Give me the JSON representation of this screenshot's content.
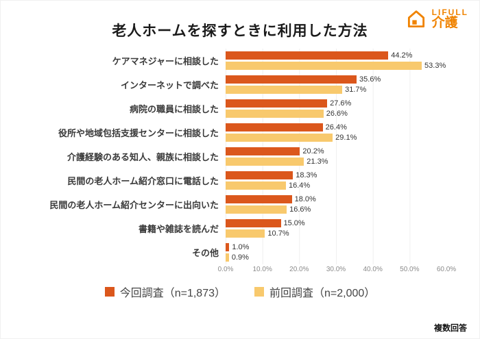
{
  "logo": {
    "brand": "LIFULL",
    "sub": "介護"
  },
  "title": "老人ホームを探すときに利用した方法",
  "footer_note": "複数回答",
  "colors": {
    "current": "#DB571C",
    "previous": "#F8C96D",
    "logo": "#F08300"
  },
  "chart_data": {
    "type": "bar",
    "orientation": "horizontal",
    "title": "老人ホームを探すときに利用した方法",
    "categories": [
      "ケアマネジャーに相談した",
      "インターネットで調べた",
      "病院の職員に相談した",
      "役所や地域包括支援センターに相談した",
      "介護経験のある知人、親族に相談した",
      "民間の老人ホーム紹介窓口に電話した",
      "民間の老人ホーム紹介センターに出向いた",
      "書籍や雑誌を読んだ",
      "その他"
    ],
    "series": [
      {
        "name": "今回調査（n=1,873）",
        "values": [
          44.2,
          35.6,
          27.6,
          26.4,
          20.2,
          18.3,
          18.0,
          15.0,
          1.0
        ]
      },
      {
        "name": "前回調査（n=2,000）",
        "values": [
          53.3,
          31.7,
          26.6,
          29.1,
          21.3,
          16.4,
          16.6,
          10.7,
          0.9
        ]
      }
    ],
    "xlim": [
      0,
      60
    ],
    "x_ticks": [
      "0.0%",
      "10.0%",
      "20.0%",
      "30.0%",
      "40.0%",
      "50.0%",
      "60.0%"
    ],
    "value_suffix": "%",
    "legend_position": "bottom",
    "grid": "light-vertical"
  }
}
